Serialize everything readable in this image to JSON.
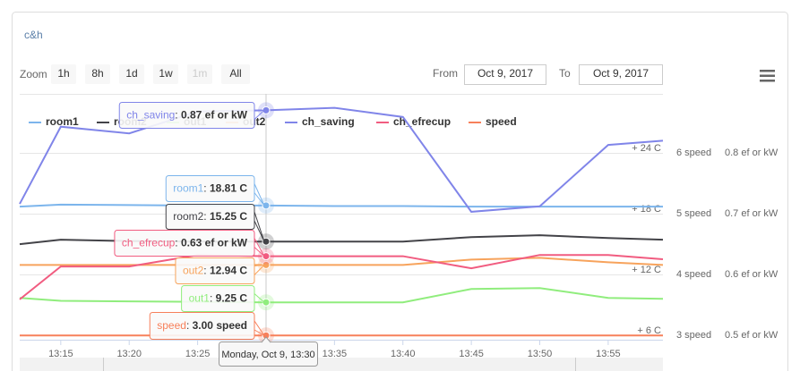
{
  "header": {
    "title": "c&h"
  },
  "controls": {
    "zoom_label": "Zoom",
    "zoom_buttons": [
      "1h",
      "8h",
      "1d",
      "1w",
      "1m",
      "All"
    ],
    "disabled_button": "1m",
    "from_label": "From",
    "from_value": "Oct 9, 2017",
    "to_label": "To",
    "to_value": "Oct 9, 2017"
  },
  "chart_data": {
    "type": "line",
    "x": [
      "13:12",
      "13:15",
      "13:20",
      "13:25",
      "13:30",
      "13:35",
      "13:40",
      "13:45",
      "13:50",
      "13:55",
      "13:59"
    ],
    "xlim": [
      "13:12",
      "13:59"
    ],
    "xticks": [
      "13:15",
      "13:20",
      "13:25",
      "13:30",
      "13:35",
      "13:40",
      "13:45",
      "13:50",
      "13:55"
    ],
    "ylim": [
      5.56,
      29.83
    ],
    "yticks": [
      {
        "value": 6,
        "label": "+ 6 C"
      },
      {
        "value": 12,
        "label": "+ 12 C"
      },
      {
        "value": 18,
        "label": "+ 18 C"
      },
      {
        "value": 24,
        "label": "+ 24 C"
      }
    ],
    "y2lim": [
      2.93,
      6.97
    ],
    "y2ticks": [
      {
        "value": 3,
        "label": "3 speed"
      },
      {
        "value": 4,
        "label": "4 speed"
      },
      {
        "value": 5,
        "label": "5 speed"
      },
      {
        "value": 6,
        "label": "6 speed"
      }
    ],
    "y3lim": [
      0.4926,
      0.897
    ],
    "y3ticks": [
      {
        "value": 0.5,
        "label": "0.5 ef or kW"
      },
      {
        "value": 0.6,
        "label": "0.6 ef or kW"
      },
      {
        "value": 0.7,
        "label": "0.7 ef or kW"
      },
      {
        "value": 0.8,
        "label": "0.8 ef or kW"
      }
    ],
    "grid": true,
    "hover_x": "13:30",
    "hover_x_label": "Monday, Oct 9, 13:30",
    "series": [
      {
        "name": "room1",
        "color": "#7cb5ec",
        "values": [
          18.7,
          18.9,
          18.85,
          18.8,
          18.81,
          18.75,
          18.75,
          18.7,
          18.7,
          18.7,
          18.7
        ],
        "hover_label": "18.81 C"
      },
      {
        "name": "room2",
        "color": "#434348",
        "values": [
          14.99,
          15.43,
          15.3,
          15.25,
          15.25,
          15.25,
          15.25,
          15.69,
          15.87,
          15.6,
          15.43
        ],
        "hover_label": "15.25 C"
      },
      {
        "name": "out1",
        "color": "#90ed7d",
        "values": [
          9.69,
          9.4,
          9.34,
          9.3,
          9.25,
          9.25,
          9.25,
          10.57,
          10.66,
          9.69,
          9.6
        ],
        "hover_label": "9.25 C"
      },
      {
        "name": "out2",
        "color": "#f7a35c",
        "values": [
          12.94,
          12.94,
          12.94,
          12.94,
          12.94,
          12.94,
          12.94,
          13.47,
          13.65,
          13.2,
          12.94
        ],
        "hover_label": "12.94 C"
      },
      {
        "name": "ch_saving",
        "color": "#8085e9",
        "axis": "y3",
        "values": [
          0.716,
          0.843,
          0.832,
          0.868,
          0.87,
          0.874,
          0.859,
          0.703,
          0.712,
          0.813,
          0.82
        ],
        "hover_label": "0.87 ef or kW"
      },
      {
        "name": "ch_efrecup",
        "color": "#f15c80",
        "axis": "y3",
        "values": [
          0.559,
          0.613,
          0.613,
          0.632,
          0.63,
          0.63,
          0.63,
          0.61,
          0.632,
          0.632,
          0.625
        ],
        "hover_label": "0.63 ef or kW"
      },
      {
        "name": "speed",
        "color": "#f7805b",
        "axis": "y2",
        "values": [
          3,
          3,
          3,
          3,
          3,
          3,
          3,
          3,
          3,
          3,
          3
        ],
        "hover_label": "3.00 speed"
      }
    ]
  }
}
